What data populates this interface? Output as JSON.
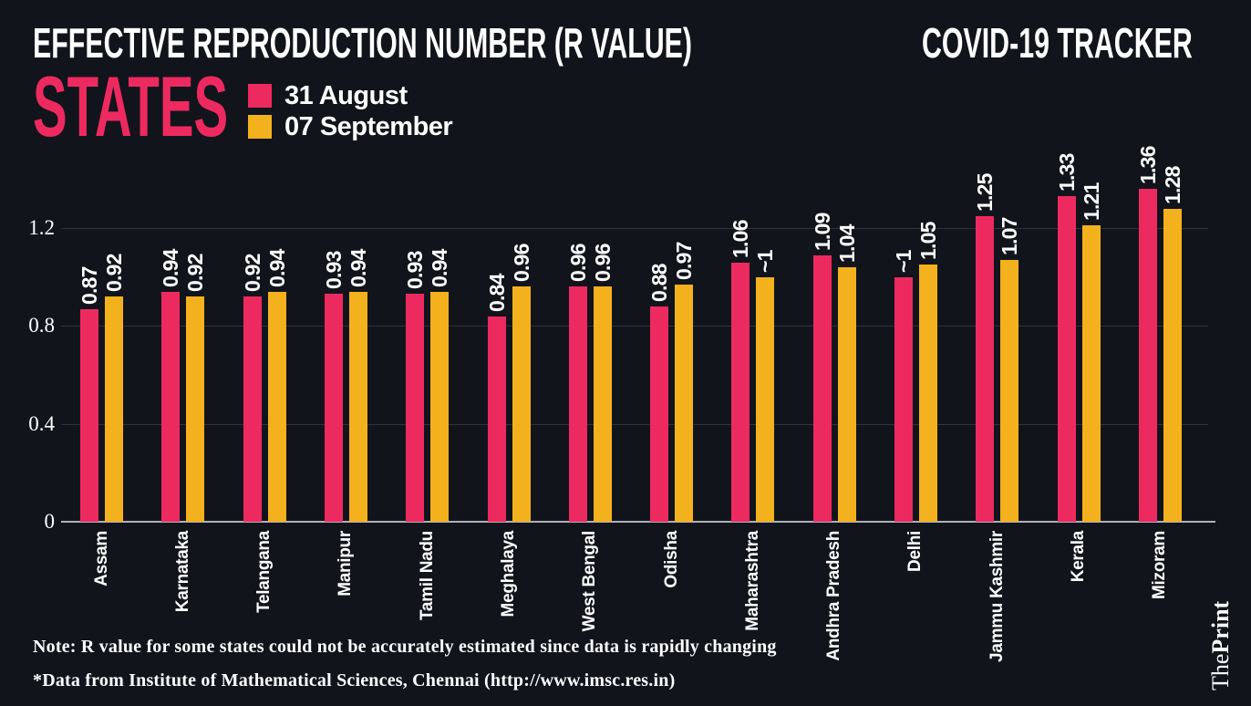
{
  "colors": {
    "background": "#12141C",
    "pink": "#ED2A5F",
    "yellow": "#F4B11E",
    "gridline": "#30333C",
    "axis_line": "#AFB2B9",
    "text": "#FFFFFF"
  },
  "header": {
    "title": "EFFECTIVE REPRODUCTION NUMBER (R VALUE)",
    "tracker_label": "COVID-19 TRACKER",
    "section_title": "STATES"
  },
  "legend": [
    {
      "label": "31 August",
      "color": "#ED2A5F"
    },
    {
      "label": "07 September",
      "color": "#F4B11E"
    }
  ],
  "chart_data": {
    "type": "bar",
    "title": "Effective Reproduction Number (R value) by state",
    "categories": [
      "Assam",
      "Karnataka",
      "Telangana",
      "Manipur",
      "Tamil Nadu",
      "Meghalaya",
      "West Bengal",
      "Odisha",
      "Maharashtra",
      "Andhra Pradesh",
      "Delhi",
      "Jammu Kashmir",
      "Kerala",
      "Mizoram"
    ],
    "series": [
      {
        "name": "31 August",
        "color": "#ED2A5F",
        "values": [
          0.87,
          0.94,
          0.92,
          0.93,
          0.93,
          0.84,
          0.96,
          0.88,
          1.06,
          1.09,
          1.0,
          1.25,
          1.33,
          1.36
        ],
        "labels": [
          "0.87",
          "0.94",
          "0.92",
          "0.93",
          "0.93",
          "0.84",
          "0.96",
          "0.88",
          "1.06",
          "1.09",
          "~1",
          "1.25",
          "1.33",
          "1.36"
        ]
      },
      {
        "name": "07 September",
        "color": "#F4B11E",
        "values": [
          0.92,
          0.92,
          0.94,
          0.94,
          0.94,
          0.96,
          0.96,
          0.97,
          1.0,
          1.04,
          1.05,
          1.07,
          1.21,
          1.28
        ],
        "labels": [
          "0.92",
          "0.92",
          "0.94",
          "0.94",
          "0.94",
          "0.96",
          "0.96",
          "0.97",
          "~1",
          "1.04",
          "1.05",
          "1.07",
          "1.21",
          "1.28"
        ]
      }
    ],
    "yticks": [
      {
        "label": "1.2",
        "value": 1.2
      },
      {
        "label": "0.8",
        "value": 0.8
      },
      {
        "label": "0.4",
        "value": 0.4
      },
      {
        "label": "0",
        "value": 0
      }
    ],
    "ylim": [
      0,
      1.2
    ],
    "xlabel": "",
    "ylabel": "",
    "grid": "horizontal, faint",
    "legend_position": "top-left",
    "value_labels": "rotated 90deg above bars",
    "category_labels": "rotated 90deg below axis"
  },
  "footer": {
    "note": "Note: R value for some states could not be accurately estimated since data is rapidly changing",
    "source": "*Data from Institute of Mathematical Sciences, Chennai (http://www.imsc.res.in)",
    "brand_regular": "The",
    "brand_bold": "Print"
  }
}
